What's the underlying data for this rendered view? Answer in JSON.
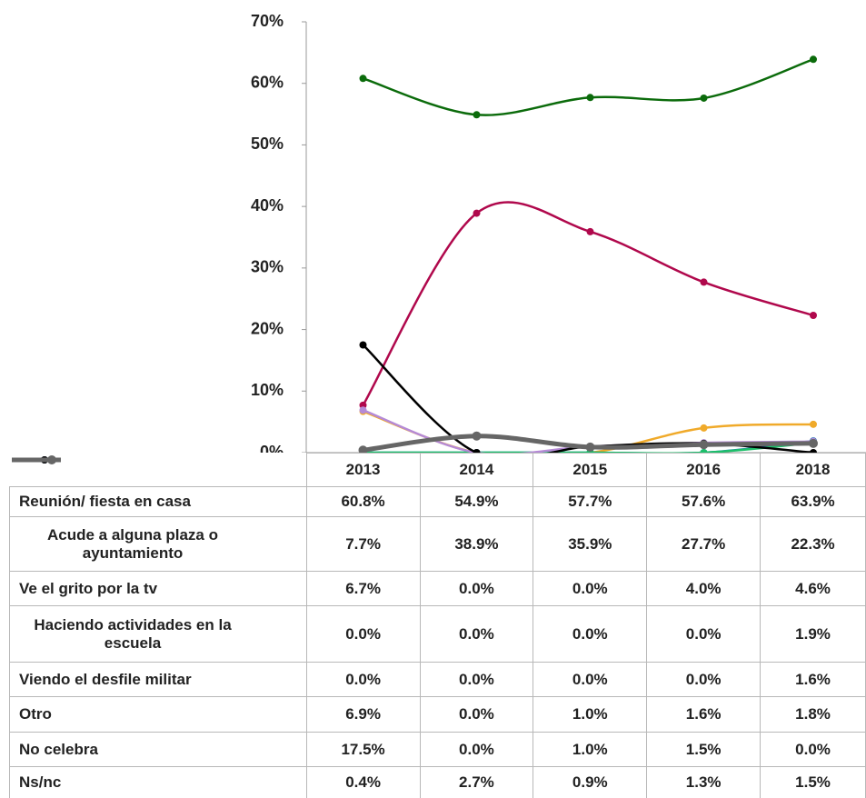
{
  "chart_data": {
    "type": "line",
    "categories": [
      "2013",
      "2014",
      "2015",
      "2016",
      "2018"
    ],
    "ylim": [
      0,
      70
    ],
    "yticks": [
      {
        "value": 0,
        "label": "0%"
      },
      {
        "value": 10,
        "label": "10%"
      },
      {
        "value": 20,
        "label": "20%"
      },
      {
        "value": 30,
        "label": "30%"
      },
      {
        "value": 40,
        "label": "40%"
      },
      {
        "value": 50,
        "label": "50%"
      },
      {
        "value": 60,
        "label": "60%"
      },
      {
        "value": 70,
        "label": "70%"
      }
    ],
    "series": [
      {
        "name": "Reunión/ fiesta en casa",
        "color": "#0b6b0b",
        "values": [
          60.8,
          54.9,
          57.7,
          57.6,
          63.9
        ],
        "value_labels": [
          "60.8%",
          "54.9%",
          "57.7%",
          "57.6%",
          "63.9%"
        ]
      },
      {
        "name": "Acude a alguna plaza o ayuntamiento",
        "color": "#b0084c",
        "values": [
          7.7,
          38.9,
          35.9,
          27.7,
          22.3
        ],
        "value_labels": [
          "7.7%",
          "38.9%",
          "35.9%",
          "27.7%",
          "22.3%"
        ]
      },
      {
        "name": "Ve el grito por la tv",
        "color": "#f0aa2a",
        "values": [
          6.7,
          0,
          0,
          4,
          4.6
        ],
        "value_labels": [
          "6.7%",
          "0.0%",
          "0.0%",
          "4.0%",
          "4.6%"
        ]
      },
      {
        "name": "Haciendo actividades en la escuela",
        "color": "#1f73b5",
        "values": [
          0,
          0,
          0,
          0,
          1.9
        ],
        "value_labels": [
          "0.0%",
          "0.0%",
          "0.0%",
          "0.0%",
          "1.9%"
        ]
      },
      {
        "name": "Viendo el desfile militar",
        "color": "#1dbf6a",
        "values": [
          0,
          0,
          0,
          0,
          1.6
        ],
        "value_labels": [
          "0.0%",
          "0.0%",
          "0.0%",
          "0.0%",
          "1.6%"
        ]
      },
      {
        "name": "Otro",
        "color": "#b58ad6",
        "values": [
          6.9,
          0,
          1,
          1.6,
          1.8
        ],
        "value_labels": [
          "6.9%",
          "0.0%",
          "1.0%",
          "1.6%",
          "1.8%"
        ]
      },
      {
        "name": "No celebra",
        "color": "#000000",
        "values": [
          17.5,
          0,
          1,
          1.5,
          0
        ],
        "value_labels": [
          "17.5%",
          "0.0%",
          "1.0%",
          "1.5%",
          "0.0%"
        ]
      },
      {
        "name": "Ns/nc",
        "color": "#666666",
        "values": [
          0.4,
          2.7,
          0.9,
          1.3,
          1.5
        ],
        "value_labels": [
          "0.4%",
          "2.7%",
          "0.9%",
          "1.3%",
          "1.5%"
        ]
      }
    ]
  }
}
